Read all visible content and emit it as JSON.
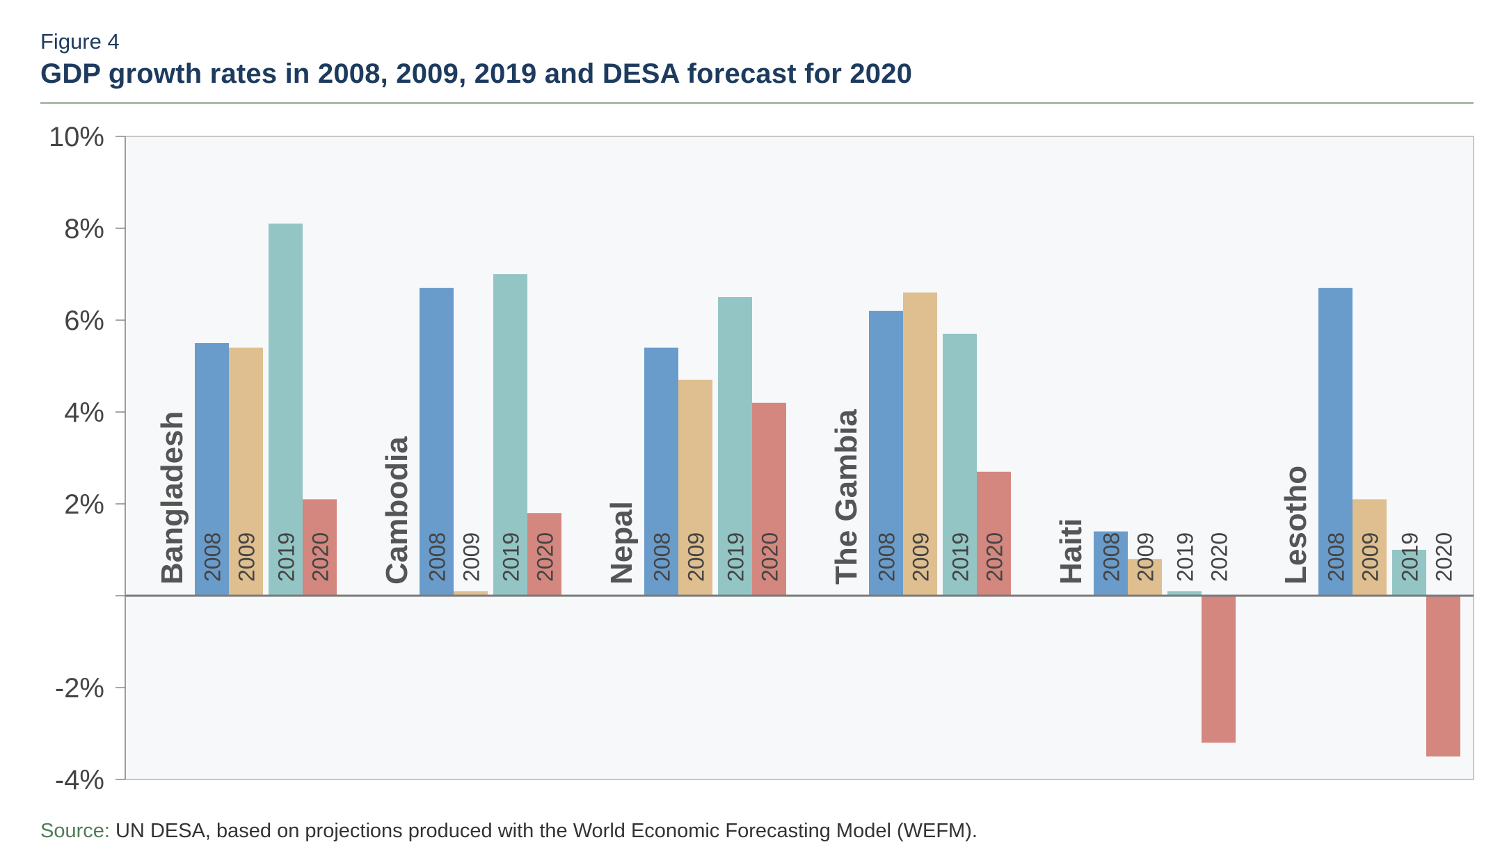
{
  "figure": {
    "label": "Figure 4",
    "title": "GDP growth rates in 2008, 2009, 2019 and DESA forecast for 2020"
  },
  "source": {
    "label": "Source:",
    "text": " UN DESA, based on projections produced with the World Economic Forecasting Model (WEFM)."
  },
  "colors": {
    "2008": "#6a9ccb",
    "2009": "#dfbf8f",
    "2019": "#93c5c5",
    "2020": "#d4877f",
    "plot_background": "#f7f8fa",
    "axis": "#7a7a7a"
  },
  "chart_data": {
    "type": "bar",
    "title": "GDP growth rates in 2008, 2009, 2019 and DESA forecast for 2020",
    "xlabel": "",
    "ylabel": "",
    "ylim": [
      -4,
      10
    ],
    "yticks": [
      "10%",
      "8%",
      "6%",
      "4%",
      "2%",
      "",
      "-2%",
      "-4%"
    ],
    "ytick_values": [
      10,
      8,
      6,
      4,
      2,
      0,
      -2,
      -4
    ],
    "grid": false,
    "legend": "none",
    "categories": [
      "Bangladesh",
      "Cambodia",
      "Nepal",
      "The Gambia",
      "Haiti",
      "Lesotho"
    ],
    "series": [
      {
        "name": "2008",
        "values": [
          5.5,
          6.7,
          5.4,
          6.2,
          1.4,
          6.7
        ]
      },
      {
        "name": "2009",
        "values": [
          5.4,
          0.1,
          4.7,
          6.6,
          0.8,
          2.1
        ]
      },
      {
        "name": "2019",
        "values": [
          8.1,
          7.0,
          6.5,
          5.7,
          0.1,
          1.0
        ]
      },
      {
        "name": "2020",
        "values": [
          2.1,
          1.8,
          4.2,
          2.7,
          -3.2,
          -3.5
        ]
      }
    ]
  }
}
